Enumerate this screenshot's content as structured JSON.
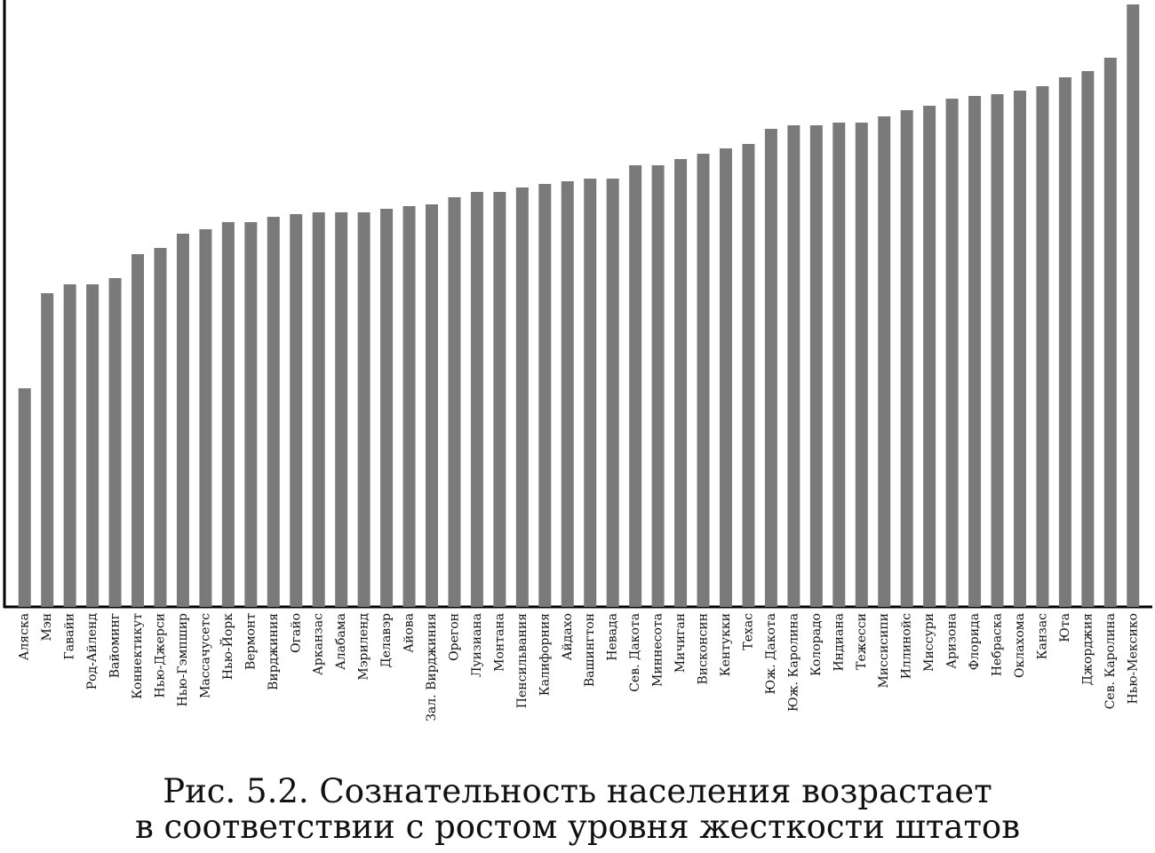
{
  "chart_data": {
    "type": "bar",
    "caption": [
      "Рис. 5.2. Сознательность населения возрастает",
      "в соответствии с ростом уровня жесткости штатов"
    ],
    "categories": [
      "Аляска",
      "Мэн",
      "Гавайи",
      "Род-Айленд",
      "Вайоминг",
      "Коннектикут",
      "Нью-Джерси",
      "Нью-Гэмпшир",
      "Массачусетс",
      "Нью-Йорк",
      "Вермонт",
      "Вирджиния",
      "Огайо",
      "Арканзас",
      "Алабама",
      "Мэриленд",
      "Делавэр",
      "Айова",
      "Зал. Вирджиния",
      "Орегон",
      "Луизиана",
      "Монтана",
      "Пенсильвания",
      "Калифорния",
      "Айдахо",
      "Вашингтон",
      "Невада",
      "Сев. Дакота",
      "Миннесота",
      "Мичиган",
      "Висконсин",
      "Кентукки",
      "Техас",
      "Юж. Дакота",
      "Юж. Каролина",
      "Колорадо",
      "Индиана",
      "Тежесси",
      "Миссисипи",
      "Иллинойс",
      "Миссури",
      "Аризона",
      "Флорида",
      "Небраска",
      "Оклахома",
      "Канзас",
      "Юта",
      "Джорджия",
      "Сев. Каролина",
      "Нью-Мексико"
    ],
    "values": [
      246,
      353,
      363,
      363,
      370,
      397,
      404,
      420,
      425,
      433,
      433,
      439,
      442,
      444,
      444,
      444,
      448,
      451,
      453,
      461,
      467,
      467,
      472,
      476,
      479,
      482,
      482,
      497,
      497,
      504,
      510,
      516,
      521,
      538,
      542,
      542,
      545,
      545,
      552,
      559,
      564,
      572,
      575,
      577,
      581,
      586,
      596,
      603,
      618,
      678
    ],
    "color": "#7a7a7a",
    "ylim": [
      0,
      680
    ]
  }
}
